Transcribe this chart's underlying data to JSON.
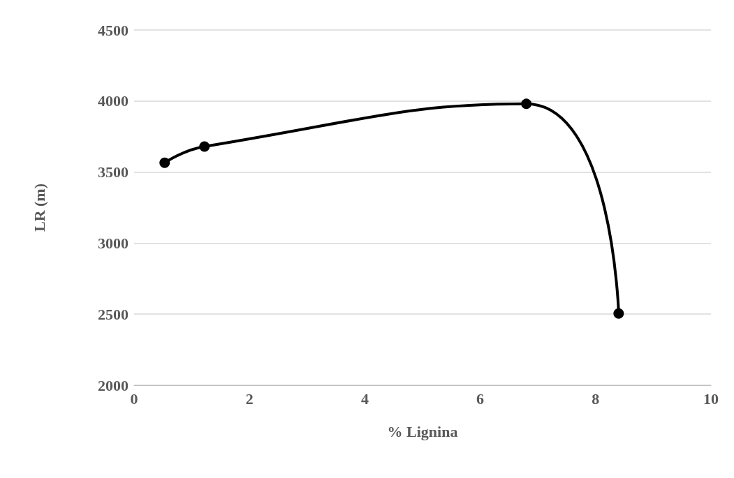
{
  "chart_data": {
    "type": "line",
    "xlabel": "% Lignina",
    "ylabel": "LR (m)",
    "x": [
      0.53,
      1.22,
      6.8,
      8.4
    ],
    "series": [
      {
        "color": "#000000",
        "values": [
          3565,
          3680,
          3980,
          2505
        ]
      }
    ],
    "xlim": [
      0,
      10
    ],
    "xticks": [
      0,
      2,
      4,
      6,
      8,
      10
    ],
    "ylim": [
      2000,
      4500
    ],
    "yticks": [
      2000,
      2500,
      3000,
      3500,
      4000,
      4500
    ],
    "grid": "y",
    "marker": "circle",
    "line_style": "solid"
  }
}
